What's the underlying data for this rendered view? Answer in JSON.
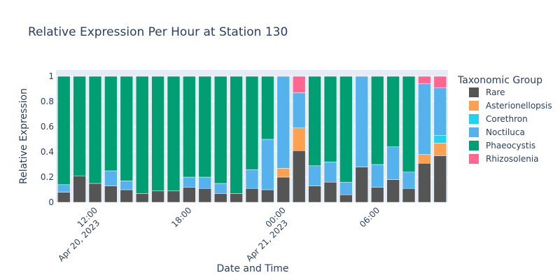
{
  "chart_data": {
    "type": "bar",
    "stacked": true,
    "title": "Relative Expression Per Hour at Station 130",
    "xlabel": "Date and Time",
    "ylabel": "Relative Expression",
    "ylim": [
      0,
      1.05
    ],
    "y_ticks": [
      "0",
      "0.2",
      "0.4",
      "0.6",
      "0.8",
      "1"
    ],
    "x_ticks": [
      {
        "lines": [
          "12:00",
          "Apr 20, 2023"
        ],
        "at": 2
      },
      {
        "lines": [
          "18:00"
        ],
        "at": 8
      },
      {
        "lines": [
          "00:00",
          "Apr 21, 2023"
        ],
        "at": 14
      },
      {
        "lines": [
          "06:00"
        ],
        "at": 20
      }
    ],
    "x_start": "2023-04-20 10:00",
    "x_step_hours": 1,
    "legend_title": "Taxonomic Group",
    "legend_position": "right",
    "grid": true,
    "series": [
      {
        "name": "Rare",
        "color": "#555555",
        "values": [
          0.08,
          0.21,
          0.15,
          0.13,
          0.1,
          0.07,
          0.09,
          0.09,
          0.12,
          0.11,
          0.07,
          0.07,
          0.11,
          0.1,
          0.2,
          0.41,
          0.13,
          0.16,
          0.06,
          0.28,
          0.12,
          0.18,
          0.11,
          0.31,
          0.37
        ]
      },
      {
        "name": "Asterionellopsis",
        "color": "#fca052",
        "values": [
          0,
          0,
          0,
          0,
          0,
          0,
          0,
          0,
          0,
          0,
          0,
          0,
          0,
          0,
          0.07,
          0.18,
          0,
          0,
          0,
          0,
          0,
          0,
          0,
          0.07,
          0.1
        ]
      },
      {
        "name": "Corethron",
        "color": "#22d3ee",
        "values": [
          0,
          0,
          0,
          0,
          0,
          0,
          0,
          0,
          0,
          0,
          0,
          0,
          0,
          0,
          0,
          0,
          0,
          0,
          0,
          0,
          0,
          0,
          0,
          0,
          0.06
        ]
      },
      {
        "name": "Noctiluca",
        "color": "#56b2ec",
        "values": [
          0.06,
          0,
          0,
          0.12,
          0.07,
          0,
          0,
          0,
          0.08,
          0.09,
          0.08,
          0,
          0.15,
          0.4,
          0.73,
          0.28,
          0.16,
          0.16,
          0.1,
          0.72,
          0.18,
          0.26,
          0.13,
          0.56,
          0.38
        ]
      },
      {
        "name": "Phaeocystis",
        "color": "#009e73",
        "values": [
          0.86,
          0.79,
          0.85,
          0.75,
          0.83,
          0.93,
          0.91,
          0.91,
          0.8,
          0.8,
          0.85,
          0.93,
          0.74,
          0.5,
          0,
          0,
          0.71,
          0.68,
          0.84,
          0,
          0.7,
          0.56,
          0.76,
          0,
          0
        ]
      },
      {
        "name": "Rhizosolenia",
        "color": "#ff6692",
        "values": [
          0,
          0,
          0,
          0,
          0,
          0,
          0,
          0,
          0,
          0,
          0,
          0,
          0,
          0,
          0,
          0.13,
          0,
          0,
          0,
          0,
          0,
          0,
          0,
          0.06,
          0.09
        ]
      }
    ]
  }
}
